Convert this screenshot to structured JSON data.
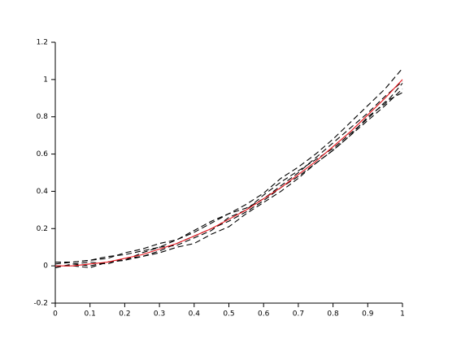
{
  "chart_data": {
    "type": "line",
    "x": [
      0,
      0.05,
      0.1,
      0.15,
      0.2,
      0.25,
      0.3,
      0.35,
      0.4,
      0.45,
      0.5,
      0.55,
      0.6,
      0.65,
      0.7,
      0.75,
      0.8,
      0.85,
      0.9,
      0.95,
      1
    ],
    "series": [
      {
        "color": "#000000",
        "dashed": true,
        "values": [
          0.01,
          0.02,
          0.03,
          0.04,
          0.07,
          0.09,
          0.12,
          0.14,
          0.19,
          0.24,
          0.28,
          0.33,
          0.39,
          0.47,
          0.53,
          0.6,
          0.68,
          0.77,
          0.86,
          0.95,
          1.06
        ]
      },
      {
        "color": "#000000",
        "dashed": true,
        "values": [
          -0.01,
          0.01,
          0,
          0.02,
          0.03,
          0.05,
          0.07,
          0.1,
          0.12,
          0.17,
          0.21,
          0.28,
          0.34,
          0.4,
          0.47,
          0.55,
          0.62,
          0.7,
          0.78,
          0.86,
          0.95
        ]
      },
      {
        "color": "#000000",
        "dashed": true,
        "values": [
          0.02,
          0.02,
          0.03,
          0.05,
          0.06,
          0.08,
          0.1,
          0.14,
          0.18,
          0.23,
          0.28,
          0.31,
          0.36,
          0.43,
          0.5,
          0.58,
          0.66,
          0.74,
          0.82,
          0.91,
          0.99
        ]
      },
      {
        "color": "#000000",
        "dashed": true,
        "values": [
          0,
          0,
          -0.01,
          0.02,
          0.03,
          0.07,
          0.1,
          0.11,
          0.15,
          0.19,
          0.26,
          0.3,
          0.38,
          0.45,
          0.51,
          0.57,
          0.63,
          0.71,
          0.79,
          0.88,
          0.93
        ]
      },
      {
        "color": "#000000",
        "dashed": true,
        "values": [
          -0.01,
          0.01,
          0.02,
          0.01,
          0.04,
          0.05,
          0.08,
          0.12,
          0.16,
          0.2,
          0.24,
          0.29,
          0.35,
          0.42,
          0.48,
          0.55,
          0.62,
          0.7,
          0.8,
          0.87,
          0.98
        ]
      },
      {
        "color": "#e8141b",
        "dashed": false,
        "values": [
          0,
          0,
          0.01,
          0.02,
          0.04,
          0.06,
          0.09,
          0.12,
          0.16,
          0.2,
          0.25,
          0.3,
          0.36,
          0.42,
          0.49,
          0.56,
          0.64,
          0.72,
          0.81,
          0.9,
          1
        ]
      }
    ],
    "xlim": [
      0,
      1
    ],
    "xticks": [
      0,
      0.1,
      0.2,
      0.3,
      0.4,
      0.5,
      0.6,
      0.7,
      0.8,
      0.9,
      1
    ],
    "ylim": [
      -0.2,
      1.2
    ],
    "yticks": [
      -0.2,
      0,
      0.2,
      0.4,
      0.6,
      0.8,
      1,
      1.2
    ]
  }
}
